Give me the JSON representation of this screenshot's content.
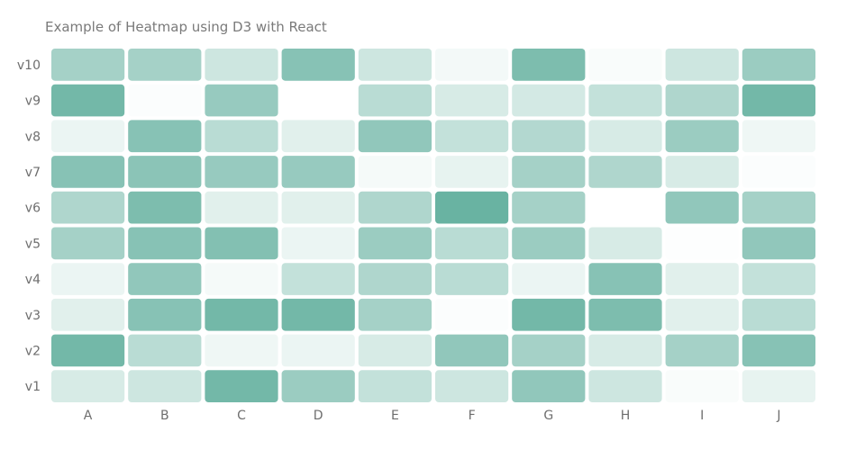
{
  "chart_data": {
    "type": "heatmap",
    "title": "Example of Heatmap using D3 with React",
    "x_categories": [
      "A",
      "B",
      "C",
      "D",
      "E",
      "F",
      "G",
      "H",
      "I",
      "J"
    ],
    "y_categories": [
      "v1",
      "v2",
      "v3",
      "v4",
      "v5",
      "v6",
      "v7",
      "v8",
      "v9",
      "v10"
    ],
    "values": [
      [
        20,
        25,
        70,
        50,
        30,
        25,
        55,
        25,
        3,
        12
      ],
      [
        70,
        35,
        8,
        10,
        20,
        55,
        45,
        20,
        45,
        60
      ],
      [
        15,
        60,
        70,
        70,
        45,
        2,
        70,
        65,
        15,
        35
      ],
      [
        10,
        55,
        5,
        30,
        40,
        35,
        10,
        60,
        15,
        30
      ],
      [
        45,
        60,
        62,
        10,
        50,
        35,
        50,
        20,
        1,
        55
      ],
      [
        40,
        65,
        15,
        15,
        40,
        75,
        45,
        0,
        55,
        45
      ],
      [
        60,
        58,
        52,
        52,
        5,
        12,
        45,
        40,
        20,
        2
      ],
      [
        10,
        60,
        35,
        15,
        55,
        30,
        38,
        20,
        50,
        8
      ],
      [
        70,
        2,
        52,
        0,
        35,
        20,
        22,
        30,
        40,
        70
      ],
      [
        45,
        45,
        25,
        60,
        25,
        6,
        65,
        3,
        25,
        50
      ]
    ],
    "value_range": [
      0,
      75
    ],
    "color_low": "#ffffff",
    "color_high": "#69b3a2",
    "grid": false
  }
}
